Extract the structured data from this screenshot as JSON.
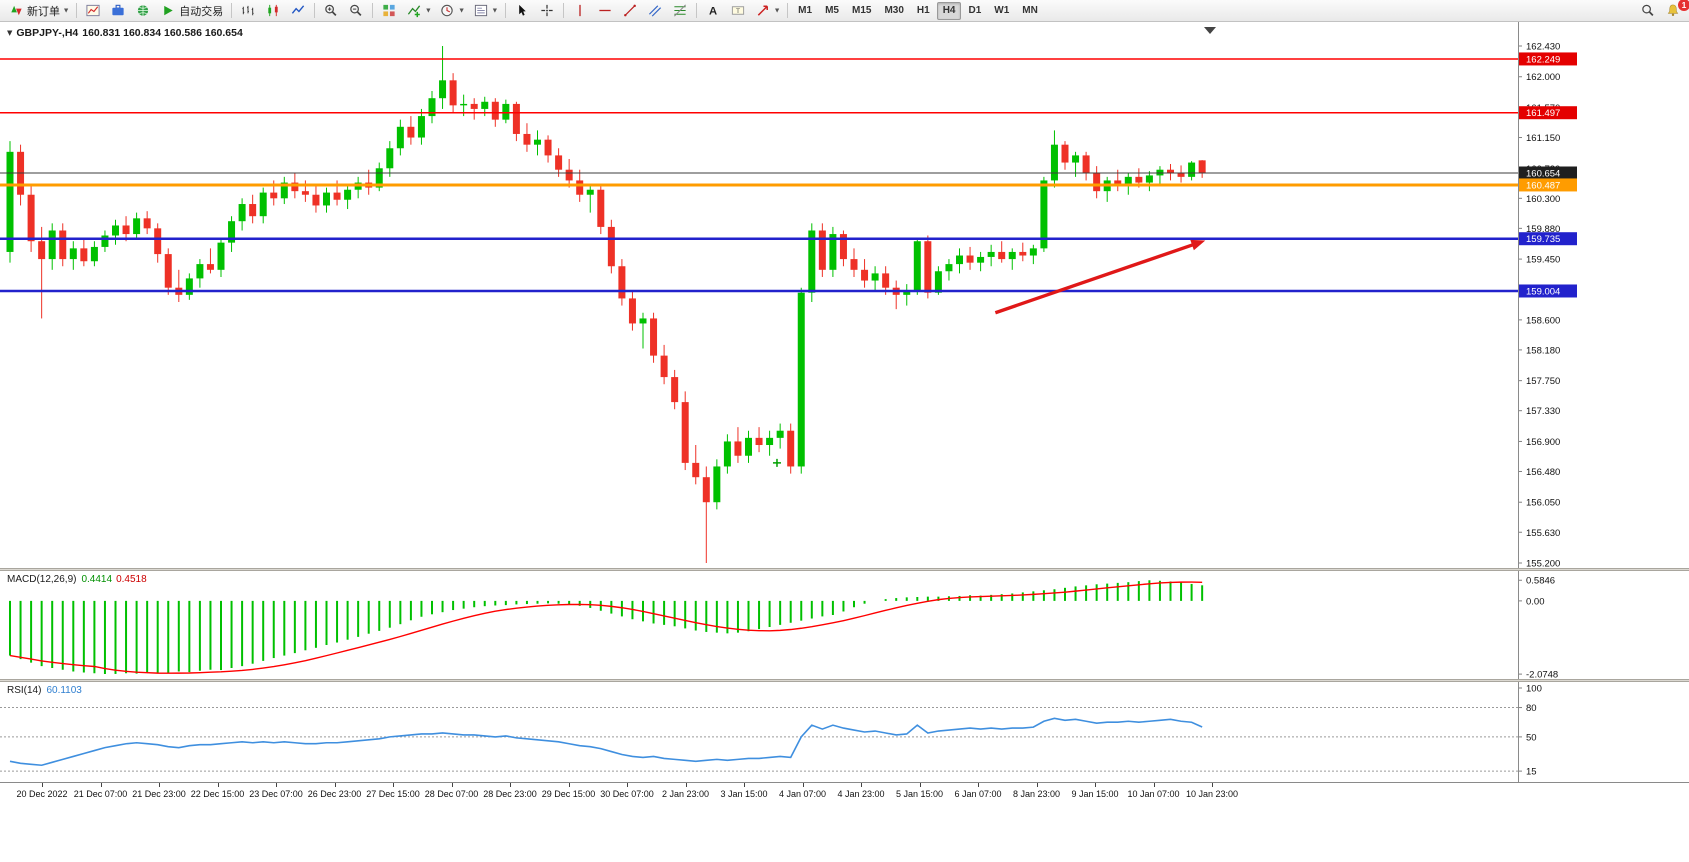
{
  "toolbar": {
    "new_order": "新订单",
    "autotrade": "自动交易",
    "timeframes": [
      "M1",
      "M5",
      "M15",
      "M30",
      "H1",
      "H4",
      "D1",
      "W1",
      "MN"
    ],
    "active_timeframe": "H4",
    "alert_badge": "1"
  },
  "chart": {
    "symbol_tf": "GBPJPY-,H4",
    "ohlc_values": "160.831 160.834 160.586 160.654"
  },
  "indicators": {
    "macd": {
      "label": "MACD(12,26,9)",
      "main_value": "0.4414",
      "signal_value": "0.4518"
    },
    "rsi": {
      "label": "RSI(14)",
      "value": "60.1103"
    }
  },
  "chart_data": [
    {
      "type": "candlestick",
      "title": "GBPJPY-,H4",
      "symbol": "GBPJPY-",
      "timeframe": "H4",
      "ylim": [
        155.2,
        162.43
      ],
      "up_color": "#00c000",
      "down_color": "#ee3126",
      "price_ticks": [
        "162.430",
        "162.000",
        "161.570",
        "161.150",
        "160.720",
        "160.300",
        "159.880",
        "159.450",
        "159.030",
        "158.600",
        "158.180",
        "157.750",
        "157.330",
        "156.900",
        "156.480",
        "156.050",
        "155.630",
        "155.200"
      ],
      "hlines": [
        {
          "value": 162.249,
          "label": "162.249",
          "color": "#ff0000",
          "badge": "#e40000",
          "width": 1.5,
          "object": true
        },
        {
          "value": 161.497,
          "label": "161.497",
          "color": "#ff0000",
          "badge": "#e40000",
          "width": 1.5,
          "object": true
        },
        {
          "value": 160.654,
          "label": "160.654",
          "color": "#3c3c3c",
          "badge": "#1f1f1f",
          "width": 1,
          "object": false
        },
        {
          "value": 160.487,
          "label": "160.487",
          "color": "#ff9c00",
          "badge": "#ff9c00",
          "width": 3,
          "object": true
        },
        {
          "value": 159.735,
          "label": "159.735",
          "color": "#2222cc",
          "badge": "#2222cc",
          "width": 2.5,
          "object": true
        },
        {
          "value": 159.004,
          "label": "159.004",
          "color": "#2222cc",
          "badge": "#2222cc",
          "width": 2.5,
          "object": true
        }
      ],
      "annotations": {
        "arrow": {
          "from_index": 93.4,
          "from_price": 158.7,
          "to_index": 113.3,
          "to_price": 159.71,
          "color": "#e01818"
        },
        "plus_marker": {
          "index": 72.7,
          "price": 156.6,
          "color": "#00a000"
        }
      },
      "time_labels": [
        "20 Dec 2022",
        "21 Dec 07:00",
        "21 Dec 23:00",
        "22 Dec 15:00",
        "23 Dec 07:00",
        "26 Dec 23:00",
        "27 Dec 15:00",
        "28 Dec 07:00",
        "28 Dec 23:00",
        "29 Dec 15:00",
        "30 Dec 07:00",
        "2 Jan 23:00",
        "3 Jan 15:00",
        "4 Jan 07:00",
        "4 Jan 23:00",
        "5 Jan 15:00",
        "6 Jan 07:00",
        "8 Jan 23:00",
        "9 Jan 15:00",
        "10 Jan 07:00",
        "10 Jan 23:00"
      ],
      "ohlc": [
        [
          159.55,
          161.1,
          159.4,
          160.95
        ],
        [
          160.95,
          161.05,
          160.2,
          160.35
        ],
        [
          160.35,
          160.5,
          159.55,
          159.7
        ],
        [
          159.7,
          159.9,
          158.62,
          159.45
        ],
        [
          159.45,
          159.95,
          159.3,
          159.85
        ],
        [
          159.85,
          159.95,
          159.35,
          159.45
        ],
        [
          159.45,
          159.7,
          159.3,
          159.6
        ],
        [
          159.6,
          159.75,
          159.35,
          159.42
        ],
        [
          159.42,
          159.7,
          159.35,
          159.62
        ],
        [
          159.62,
          159.85,
          159.55,
          159.78
        ],
        [
          159.78,
          160.0,
          159.65,
          159.92
        ],
        [
          159.92,
          160.05,
          159.7,
          159.8
        ],
        [
          159.8,
          160.1,
          159.72,
          160.02
        ],
        [
          160.02,
          160.12,
          159.8,
          159.88
        ],
        [
          159.88,
          159.95,
          159.4,
          159.52
        ],
        [
          159.52,
          159.6,
          158.95,
          159.05
        ],
        [
          159.05,
          159.3,
          158.85,
          158.95
        ],
        [
          158.95,
          159.25,
          158.88,
          159.18
        ],
        [
          159.18,
          159.45,
          159.05,
          159.38
        ],
        [
          159.38,
          159.6,
          159.25,
          159.3
        ],
        [
          159.3,
          159.75,
          159.2,
          159.68
        ],
        [
          159.68,
          160.05,
          159.55,
          159.98
        ],
        [
          159.98,
          160.3,
          159.85,
          160.22
        ],
        [
          160.22,
          160.35,
          159.95,
          160.05
        ],
        [
          160.05,
          160.45,
          159.95,
          160.38
        ],
        [
          160.38,
          160.55,
          160.2,
          160.3
        ],
        [
          160.3,
          160.6,
          160.22,
          160.52
        ],
        [
          160.52,
          160.65,
          160.3,
          160.4
        ],
        [
          160.4,
          160.55,
          160.25,
          160.35
        ],
        [
          160.35,
          160.5,
          160.1,
          160.2
        ],
        [
          160.2,
          160.45,
          160.1,
          160.38
        ],
        [
          160.38,
          160.55,
          160.2,
          160.28
        ],
        [
          160.28,
          160.48,
          160.15,
          160.42
        ],
        [
          160.42,
          160.6,
          160.3,
          160.52
        ],
        [
          160.52,
          160.7,
          160.35,
          160.45
        ],
        [
          160.45,
          160.8,
          160.4,
          160.72
        ],
        [
          160.72,
          161.1,
          160.6,
          161.0
        ],
        [
          161.0,
          161.4,
          160.9,
          161.3
        ],
        [
          161.3,
          161.45,
          161.05,
          161.15
        ],
        [
          161.15,
          161.55,
          161.05,
          161.45
        ],
        [
          161.45,
          161.8,
          161.35,
          161.7
        ],
        [
          161.7,
          162.43,
          161.55,
          161.95
        ],
        [
          161.95,
          162.05,
          161.5,
          161.6
        ],
        [
          161.6,
          161.75,
          161.45,
          161.62
        ],
        [
          161.62,
          161.7,
          161.4,
          161.55
        ],
        [
          161.55,
          161.72,
          161.45,
          161.65
        ],
        [
          161.65,
          161.7,
          161.3,
          161.4
        ],
        [
          161.4,
          161.68,
          161.35,
          161.62
        ],
        [
          161.62,
          161.65,
          161.1,
          161.2
        ],
        [
          161.2,
          161.35,
          160.95,
          161.05
        ],
        [
          161.05,
          161.25,
          160.9,
          161.12
        ],
        [
          161.12,
          161.18,
          160.8,
          160.9
        ],
        [
          160.9,
          161.0,
          160.6,
          160.7
        ],
        [
          160.7,
          160.85,
          160.45,
          160.55
        ],
        [
          160.55,
          160.7,
          160.25,
          160.35
        ],
        [
          160.35,
          160.5,
          160.1,
          160.42
        ],
        [
          160.42,
          160.48,
          159.8,
          159.9
        ],
        [
          159.9,
          160.0,
          159.25,
          159.35
        ],
        [
          159.35,
          159.45,
          158.8,
          158.9
        ],
        [
          158.9,
          159.0,
          158.45,
          158.55
        ],
        [
          158.55,
          158.7,
          158.2,
          158.62
        ],
        [
          158.62,
          158.7,
          158.0,
          158.1
        ],
        [
          158.1,
          158.25,
          157.7,
          157.8
        ],
        [
          157.8,
          157.9,
          157.35,
          157.45
        ],
        [
          157.45,
          157.6,
          156.5,
          156.6
        ],
        [
          156.6,
          156.85,
          156.3,
          156.4
        ],
        [
          156.4,
          156.55,
          155.2,
          156.05
        ],
        [
          156.05,
          156.65,
          155.95,
          156.55
        ],
        [
          156.55,
          157.0,
          156.45,
          156.9
        ],
        [
          156.9,
          157.1,
          156.6,
          156.7
        ],
        [
          156.7,
          157.05,
          156.6,
          156.95
        ],
        [
          156.95,
          157.1,
          156.75,
          156.85
        ],
        [
          156.85,
          157.05,
          156.7,
          156.95
        ],
        [
          156.95,
          157.15,
          156.8,
          157.05
        ],
        [
          157.05,
          157.15,
          156.45,
          156.55
        ],
        [
          156.55,
          159.05,
          156.45,
          158.98
        ],
        [
          158.98,
          159.95,
          158.85,
          159.85
        ],
        [
          159.85,
          159.95,
          159.2,
          159.3
        ],
        [
          159.3,
          159.9,
          159.2,
          159.8
        ],
        [
          159.8,
          159.85,
          159.35,
          159.45
        ],
        [
          159.45,
          159.6,
          159.2,
          159.3
        ],
        [
          159.3,
          159.45,
          159.05,
          159.15
        ],
        [
          159.15,
          159.35,
          159.0,
          159.25
        ],
        [
          159.25,
          159.35,
          158.95,
          159.05
        ],
        [
          159.05,
          159.15,
          158.75,
          158.95
        ],
        [
          158.95,
          159.1,
          158.8,
          159.0
        ],
        [
          159.0,
          159.75,
          158.95,
          159.7
        ],
        [
          159.7,
          159.78,
          158.9,
          158.98
        ],
        [
          158.98,
          159.35,
          158.95,
          159.28
        ],
        [
          159.28,
          159.45,
          159.15,
          159.38
        ],
        [
          159.38,
          159.6,
          159.25,
          159.5
        ],
        [
          159.5,
          159.62,
          159.3,
          159.4
        ],
        [
          159.4,
          159.55,
          159.28,
          159.48
        ],
        [
          159.48,
          159.65,
          159.35,
          159.55
        ],
        [
          159.55,
          159.7,
          159.4,
          159.45
        ],
        [
          159.45,
          159.6,
          159.3,
          159.55
        ],
        [
          159.55,
          159.68,
          159.42,
          159.5
        ],
        [
          159.5,
          159.65,
          159.38,
          159.6
        ],
        [
          159.6,
          160.6,
          159.55,
          160.55
        ],
        [
          160.55,
          161.25,
          160.45,
          161.05
        ],
        [
          161.05,
          161.1,
          160.7,
          160.8
        ],
        [
          160.8,
          160.95,
          160.6,
          160.9
        ],
        [
          160.9,
          160.95,
          160.55,
          160.65
        ],
        [
          160.65,
          160.75,
          160.3,
          160.4
        ],
        [
          160.4,
          160.6,
          160.25,
          160.55
        ],
        [
          160.55,
          160.7,
          160.4,
          160.48
        ],
        [
          160.48,
          160.65,
          160.35,
          160.6
        ],
        [
          160.6,
          160.72,
          160.45,
          160.52
        ],
        [
          160.52,
          160.68,
          160.4,
          160.62
        ],
        [
          160.62,
          160.75,
          160.5,
          160.7
        ],
        [
          160.7,
          160.78,
          160.55,
          160.66
        ],
        [
          160.66,
          160.76,
          160.52,
          160.6
        ],
        [
          160.6,
          160.82,
          160.55,
          160.8
        ],
        [
          160.831,
          160.834,
          160.586,
          160.654
        ]
      ]
    },
    {
      "type": "bar",
      "name": "MACD(12,26,9)",
      "ylim": [
        -2.1,
        0.62
      ],
      "ticks": [
        "0.5846",
        "0.00",
        "-2.0748"
      ],
      "hist_color": "#00c000",
      "signal_color": "#ff0000",
      "signal_periods": 9,
      "histogram": [
        -1.55,
        -1.65,
        -1.75,
        -1.85,
        -1.9,
        -1.95,
        -2.0,
        -2.03,
        -2.05,
        -2.07,
        -2.07,
        -2.05,
        -2.06,
        -2.04,
        -2.05,
        -2.03,
        -2.0,
        -2.02,
        -1.98,
        -1.95,
        -1.96,
        -1.9,
        -1.85,
        -1.78,
        -1.7,
        -1.62,
        -1.55,
        -1.48,
        -1.4,
        -1.33,
        -1.25,
        -1.18,
        -1.1,
        -1.02,
        -0.93,
        -0.85,
        -0.76,
        -0.66,
        -0.55,
        -0.45,
        -0.38,
        -0.32,
        -0.26,
        -0.22,
        -0.18,
        -0.15,
        -0.13,
        -0.12,
        -0.1,
        -0.09,
        -0.08,
        -0.07,
        -0.08,
        -0.1,
        -0.14,
        -0.2,
        -0.28,
        -0.36,
        -0.44,
        -0.52,
        -0.58,
        -0.64,
        -0.68,
        -0.72,
        -0.78,
        -0.84,
        -0.88,
        -0.9,
        -0.92,
        -0.9,
        -0.86,
        -0.8,
        -0.74,
        -0.68,
        -0.62,
        -0.56,
        -0.5,
        -0.44,
        -0.4,
        -0.3,
        -0.18,
        -0.08,
        0.0,
        0.05,
        0.08,
        0.1,
        0.11,
        0.12,
        0.12,
        0.13,
        0.14,
        0.16,
        0.15,
        0.17,
        0.19,
        0.21,
        0.24,
        0.27,
        0.3,
        0.33,
        0.37,
        0.41,
        0.44,
        0.47,
        0.49,
        0.51,
        0.53,
        0.56,
        0.5846,
        0.57,
        0.55,
        0.52,
        0.48,
        0.4414
      ]
    },
    {
      "type": "line",
      "name": "RSI(14)",
      "ylim": [
        10,
        100
      ],
      "ticks": [
        "100",
        "80",
        "50",
        "15"
      ],
      "levels": [
        80,
        50,
        15
      ],
      "color": "#3f8fdf",
      "values": [
        25,
        23,
        22,
        21,
        24,
        27,
        30,
        33,
        36,
        39,
        41,
        43,
        44,
        43,
        42,
        40,
        39,
        41,
        42,
        42,
        43,
        44,
        45,
        44,
        45,
        44,
        45,
        44,
        43,
        43,
        44,
        44,
        45,
        46,
        47,
        48,
        50,
        51,
        52,
        53,
        53,
        54,
        53,
        52,
        52,
        51,
        50,
        51,
        49,
        48,
        47,
        46,
        45,
        43,
        41,
        40,
        38,
        35,
        32,
        30,
        29,
        30,
        28,
        27,
        26,
        25,
        26,
        27,
        26,
        27,
        28,
        28,
        29,
        30,
        29,
        50,
        62,
        58,
        62,
        59,
        57,
        55,
        56,
        54,
        52,
        53,
        62,
        54,
        56,
        57,
        58,
        59,
        58,
        59,
        58,
        59,
        59,
        60,
        66,
        69,
        67,
        68,
        66,
        64,
        65,
        65,
        66,
        65,
        66,
        67,
        68,
        66,
        65,
        60.11
      ]
    }
  ]
}
